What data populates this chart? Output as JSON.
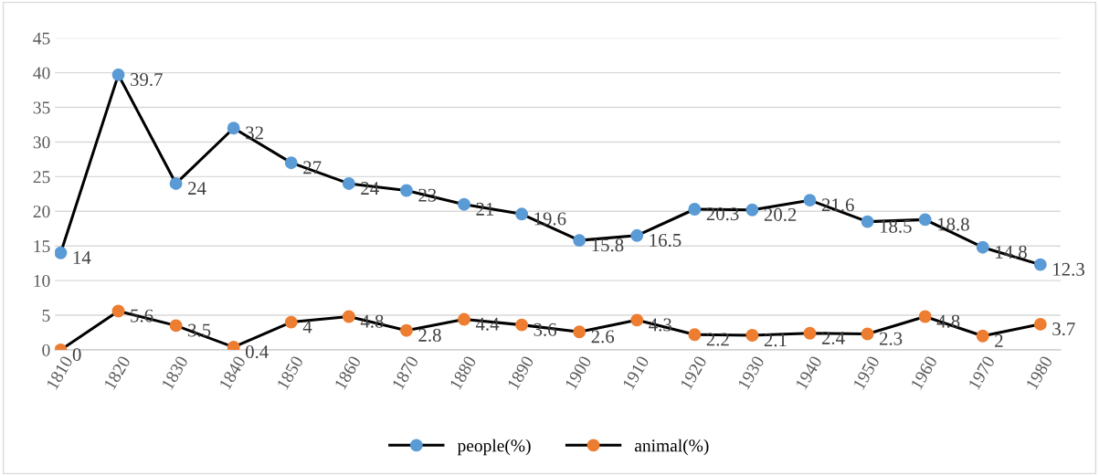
{
  "chart_data": {
    "type": "line",
    "categories": [
      "1810",
      "1820",
      "1830",
      "1840",
      "1850",
      "1860",
      "1870",
      "1880",
      "1890",
      "1900",
      "1910",
      "1920",
      "1930",
      "1940",
      "1950",
      "1960",
      "1970",
      "1980"
    ],
    "series": [
      {
        "name": "people(%)",
        "color": "#5b9bd5",
        "values": [
          14,
          39.7,
          24,
          32,
          27,
          24,
          23,
          21,
          19.6,
          15.8,
          16.5,
          20.3,
          20.2,
          21.6,
          18.5,
          18.8,
          14.8,
          12.3
        ]
      },
      {
        "name": "animal(%)",
        "color": "#ed7d31",
        "values": [
          0,
          5.6,
          3.5,
          0.4,
          4,
          4.8,
          2.8,
          4.4,
          3.6,
          2.6,
          4.3,
          2.2,
          2.1,
          2.4,
          2.3,
          4.8,
          2,
          3.7
        ]
      }
    ],
    "ylim": [
      0,
      45
    ],
    "yticks": [
      0,
      5,
      10,
      15,
      20,
      25,
      30,
      35,
      40,
      45
    ],
    "grid": "y",
    "legend": "bottom",
    "marker": "circle",
    "line_style": "solid",
    "data_labels": true
  }
}
